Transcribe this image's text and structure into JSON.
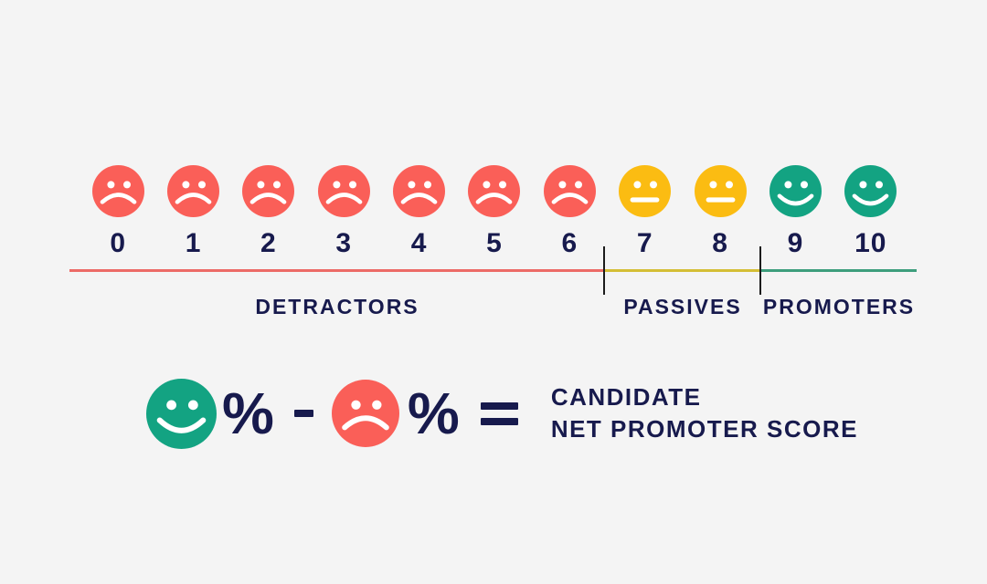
{
  "background": "#F4F4F4",
  "palette": {
    "detractor_face": "#FA5F58",
    "passive_face": "#FBBC12",
    "promoter_face": "#13A382",
    "navy_text": "#171A4D",
    "line_detractor": "#EC6A66",
    "line_passive": "#D4BE35",
    "line_promoter": "#3D9E7C",
    "divider": "#1B1B1B",
    "face_features": "#FFFFFF"
  },
  "scale": {
    "points": [
      {
        "label": "0",
        "group": "detractor",
        "mood": "sad"
      },
      {
        "label": "1",
        "group": "detractor",
        "mood": "sad"
      },
      {
        "label": "2",
        "group": "detractor",
        "mood": "sad"
      },
      {
        "label": "3",
        "group": "detractor",
        "mood": "sad"
      },
      {
        "label": "4",
        "group": "detractor",
        "mood": "sad"
      },
      {
        "label": "5",
        "group": "detractor",
        "mood": "sad"
      },
      {
        "label": "6",
        "group": "detractor",
        "mood": "sad"
      },
      {
        "label": "7",
        "group": "passive",
        "mood": "neutral"
      },
      {
        "label": "8",
        "group": "passive",
        "mood": "neutral"
      },
      {
        "label": "9",
        "group": "promoter",
        "mood": "happy"
      },
      {
        "label": "10",
        "group": "promoter",
        "mood": "happy"
      }
    ],
    "groups": [
      {
        "label": "DETRACTORS"
      },
      {
        "label": "PASSIVES"
      },
      {
        "label": "PROMOTERS"
      }
    ]
  },
  "formula": {
    "promoter_unit": "%",
    "operator_minus": "-",
    "detractor_unit": "%",
    "operator_equals": "=",
    "result_line1": "CANDIDATE",
    "result_line2": "NET PROMOTER SCORE"
  }
}
